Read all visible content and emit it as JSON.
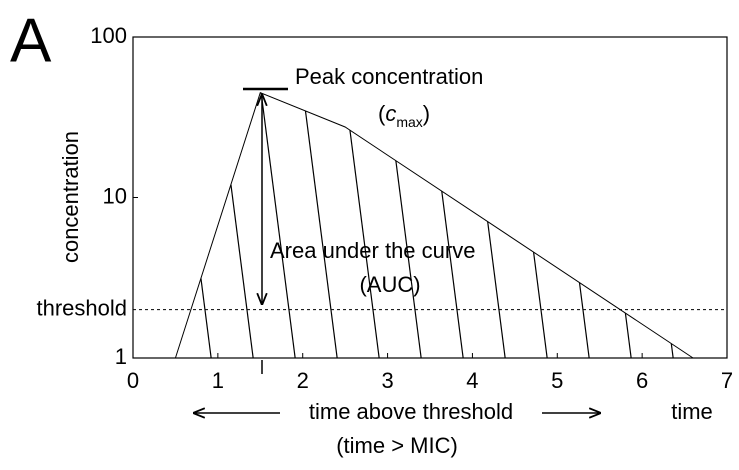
{
  "chart_data": {
    "type": "line",
    "panel_label": "A",
    "x_label": "time",
    "y_label": "concentration",
    "x": [
      0.5,
      1.5,
      2.5,
      6.6
    ],
    "values": [
      1,
      45,
      27.5,
      1
    ],
    "color": "#000000",
    "xlim": [
      0,
      7
    ],
    "xticks": [
      0,
      1,
      2,
      3,
      4,
      5,
      6,
      7
    ],
    "ylim": [
      1,
      100
    ],
    "log_y": true,
    "yticks": [
      1,
      {
        "value": 2,
        "label": "threshold"
      },
      10,
      100
    ],
    "grid": false,
    "hatched_area": true,
    "annotations": {
      "peak": "Peak concentration",
      "cmax_open": "(",
      "cmax_symbol": "c",
      "cmax_sub": "max",
      "cmax_close": ")",
      "auc": "Area under the curve",
      "auc_short": "(AUC)",
      "time_above": "time above threshold",
      "mic": "(time > MIC)"
    }
  }
}
